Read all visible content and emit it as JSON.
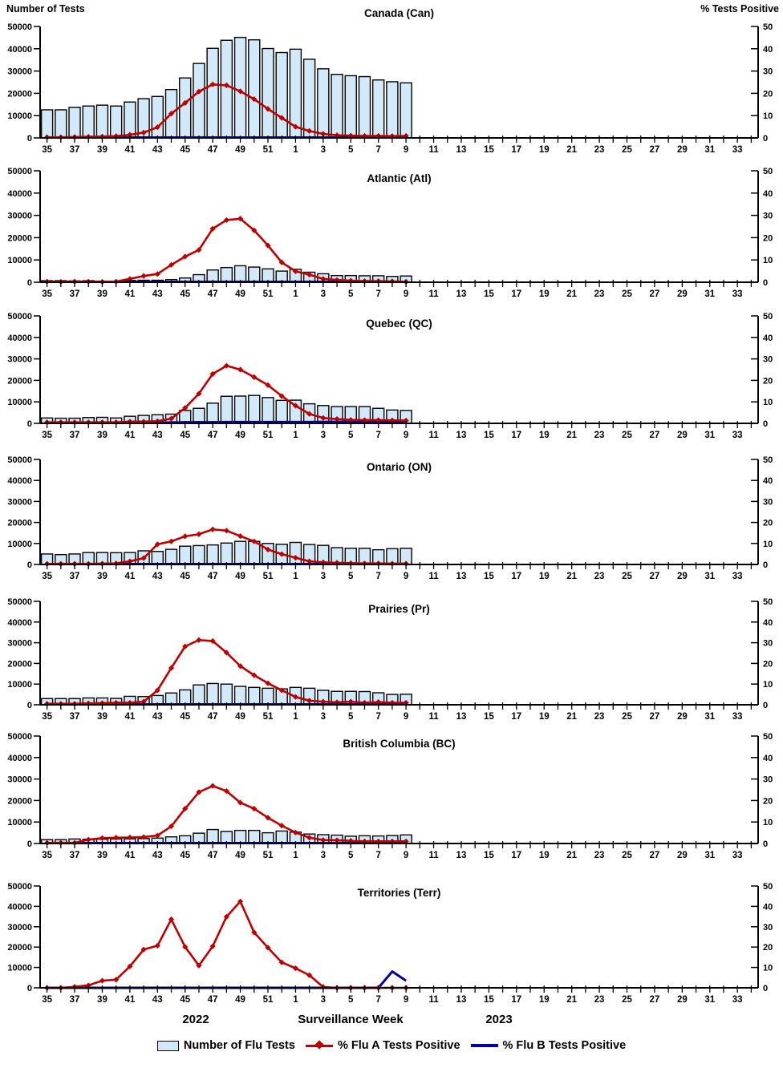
{
  "page": {
    "left_axis_header": "Number of Tests",
    "right_axis_header": "% Tests Positive",
    "footer": {
      "year_left": "2022",
      "x_axis_label": "Surveillance Week",
      "year_right": "2023"
    },
    "legend": [
      {
        "label": "Number of Flu Tests",
        "swatch": "bar"
      },
      {
        "label": "% Flu A Tests Positive",
        "swatch": "line-diamond"
      },
      {
        "label": "% Flu B Tests Positive",
        "swatch": "line"
      }
    ],
    "colors": {
      "bar_fill": "#D2E9F9",
      "bar_border": "#000000",
      "flu_a": "#C00000",
      "flu_b": "#0000A8",
      "axis": "#000000"
    }
  },
  "axes": {
    "left_ticks": [
      "0",
      "10000",
      "20000",
      "30000",
      "40000",
      "50000"
    ],
    "right_ticks": [
      "0",
      "10",
      "20",
      "30",
      "40",
      "50"
    ],
    "left_max": 50000,
    "right_max": 50,
    "week_slots": 52,
    "week_tick_labels": [
      "35",
      "37",
      "39",
      "41",
      "43",
      "45",
      "47",
      "49",
      "51",
      "1",
      "3",
      "5",
      "7",
      "9",
      "11",
      "13",
      "15",
      "17",
      "19",
      "21",
      "23",
      "25",
      "27",
      "29",
      "31",
      "33"
    ],
    "data_weeks": [
      "35",
      "36",
      "37",
      "38",
      "39",
      "40",
      "41",
      "42",
      "43",
      "44",
      "45",
      "46",
      "47",
      "48",
      "49",
      "50",
      "51",
      "52",
      "1",
      "2",
      "3",
      "4",
      "5",
      "6",
      "7",
      "8",
      "9"
    ]
  },
  "chart_data": [
    {
      "type": "combo-bar-line",
      "title": "Canada (Can)",
      "bars": [
        12600,
        12600,
        13700,
        14300,
        14700,
        14300,
        16100,
        17600,
        18600,
        21700,
        26900,
        33400,
        40200,
        43800,
        45100,
        44000,
        40100,
        38300,
        39800,
        35300,
        31000,
        28500,
        27900,
        27500,
        26000,
        25200,
        24700
      ],
      "flu_a_pct": [
        0.3,
        0.3,
        0.4,
        0.5,
        0.6,
        0.8,
        1.4,
        2.4,
        4.8,
        10.9,
        15.7,
        20.8,
        24,
        23.6,
        20.9,
        17.4,
        13,
        9,
        5,
        3.1,
        1.8,
        1.2,
        1,
        0.9,
        0.9,
        0.8,
        0.9
      ],
      "flu_b_pct": [
        0.2,
        0.2,
        0.2,
        0.2,
        0.2,
        0.2,
        0.2,
        0.2,
        0.2,
        0.2,
        0.2,
        0.2,
        0.2,
        0.2,
        0.2,
        0.2,
        0.2,
        0.2,
        0.2,
        0.2,
        0.2,
        0.2,
        0.2,
        0.2,
        0.2,
        0.2,
        0.2
      ]
    },
    {
      "type": "combo-bar-line",
      "title": "Atlantic (Atl)",
      "bars": [
        700,
        700,
        600,
        700,
        500,
        500,
        800,
        900,
        900,
        1200,
        1900,
        3400,
        5500,
        6600,
        7400,
        6800,
        6000,
        5000,
        5800,
        4500,
        3800,
        3000,
        3000,
        2900,
        2900,
        2600,
        2800
      ],
      "flu_a_pct": [
        0.3,
        0.2,
        0.3,
        0.3,
        0.2,
        0.3,
        1.5,
        2.8,
        3.7,
        7.8,
        11.5,
        14.5,
        24,
        27.9,
        28.5,
        23.3,
        16.5,
        8.9,
        4.9,
        3.4,
        1.5,
        1,
        0.7,
        0.5,
        0.5,
        0.4,
        0.2
      ],
      "flu_b_pct": [
        0.2,
        0.2,
        0.2,
        0.2,
        0.2,
        0.2,
        0.2,
        0.2,
        0.2,
        0.2,
        0.2,
        0.2,
        0.2,
        0.2,
        0.2,
        0.2,
        0.2,
        0.2,
        0.2,
        0.2,
        0.2,
        0.2,
        0.2,
        0.2,
        0.2,
        0.2,
        0.2
      ]
    },
    {
      "type": "combo-bar-line",
      "title": "Quebec (QC)",
      "bars": [
        2500,
        2400,
        2400,
        2700,
        2800,
        2500,
        3300,
        3700,
        4000,
        4300,
        6000,
        7000,
        9400,
        12600,
        12700,
        13000,
        12000,
        10700,
        10800,
        9100,
        8300,
        7800,
        7800,
        7800,
        7000,
        6200,
        6000
      ],
      "flu_a_pct": [
        0.5,
        0.5,
        0.5,
        0.5,
        0.5,
        0.5,
        0.8,
        0.8,
        1,
        2.2,
        7.2,
        13.8,
        23,
        26.8,
        25,
        21.5,
        17.8,
        12.7,
        8.2,
        4.4,
        2.5,
        2,
        1.6,
        1.5,
        1.5,
        1.4,
        1.3
      ],
      "flu_b_pct": [
        0.3,
        0.3,
        0.3,
        0.3,
        0.3,
        0.3,
        0.3,
        0.3,
        0.3,
        0.4,
        0.5,
        0.5,
        0.5,
        0.6,
        0.6,
        0.6,
        0.6,
        0.6,
        0.6,
        0.6,
        0.7,
        0.7,
        0.7,
        0.8,
        0.8,
        0.9,
        1
      ]
    },
    {
      "type": "combo-bar-line",
      "title": "Ontario (ON)",
      "bars": [
        5000,
        4700,
        5000,
        5700,
        5700,
        5600,
        5700,
        6500,
        6200,
        7200,
        8700,
        9000,
        9300,
        10200,
        11000,
        11000,
        10000,
        9600,
        10500,
        9500,
        9100,
        8000,
        7700,
        7700,
        7000,
        7500,
        7700
      ],
      "flu_a_pct": [
        0.3,
        0.3,
        0.3,
        0.3,
        0.4,
        0.5,
        1.5,
        3,
        9.6,
        11,
        13.4,
        14.4,
        16.7,
        16.1,
        13.5,
        11,
        7.1,
        4.9,
        3.2,
        1.5,
        1,
        0.8,
        0.6,
        0.5,
        0.5,
        0.4,
        0.4
      ],
      "flu_b_pct": [
        0.2,
        0.2,
        0.2,
        0.2,
        0.2,
        0.2,
        0.2,
        0.2,
        0.2,
        0.2,
        0.2,
        0.2,
        0.2,
        0.2,
        0.2,
        0.2,
        0.2,
        0.2,
        0.2,
        0.2,
        0.2,
        0.2,
        0.2,
        0.2,
        0.2,
        0.2,
        0.2
      ]
    },
    {
      "type": "combo-bar-line",
      "title": "Prairies (Pr)",
      "bars": [
        3000,
        3000,
        3000,
        3300,
        3300,
        3100,
        4100,
        4000,
        4500,
        5700,
        7200,
        9600,
        10300,
        10000,
        8900,
        8400,
        8000,
        7700,
        8400,
        8000,
        7000,
        6500,
        6500,
        6400,
        5800,
        5000,
        5100
      ],
      "flu_a_pct": [
        0.5,
        0.5,
        0.5,
        0.7,
        0.8,
        1,
        1,
        1.5,
        7,
        17.8,
        28.2,
        31.3,
        30.8,
        25.2,
        18.7,
        14.3,
        10.4,
        7,
        3.8,
        2,
        1.5,
        1.2,
        1.5,
        1,
        1.3,
        1,
        1
      ],
      "flu_b_pct": [
        0.2,
        0.2,
        0.2,
        0.2,
        0.2,
        0.2,
        0.2,
        0.2,
        0.2,
        0.2,
        0.2,
        0.2,
        0.2,
        0.2,
        0.2,
        0.2,
        0.2,
        0.2,
        0.2,
        0.2,
        0.2,
        0.2,
        0.2,
        0.2,
        0.2,
        0.2,
        0.2
      ]
    },
    {
      "type": "combo-bar-line",
      "title": "British Columbia (BC)",
      "bars": [
        1800,
        1800,
        2100,
        2000,
        2000,
        2100,
        2200,
        2300,
        2500,
        3100,
        3600,
        4800,
        6500,
        5600,
        6100,
        6100,
        5000,
        5800,
        5300,
        4400,
        4100,
        3900,
        3400,
        3600,
        3500,
        3700,
        4000
      ],
      "flu_a_pct": [
        0.3,
        0.3,
        0.3,
        1.8,
        2.5,
        2.7,
        2.8,
        3,
        3.7,
        8,
        16.2,
        23.9,
        26.8,
        24.4,
        19,
        16.2,
        12,
        8.3,
        5.1,
        2.7,
        1.6,
        1.5,
        1.2,
        1,
        1,
        1,
        1
      ],
      "flu_b_pct": [
        0.2,
        0.2,
        0.2,
        0.2,
        0.2,
        0.2,
        0.2,
        0.2,
        0.2,
        0.2,
        0.2,
        0.2,
        0.2,
        0.2,
        0.2,
        0.2,
        0.2,
        0.2,
        0.2,
        0.2,
        0.2,
        0.2,
        0.2,
        0.2,
        0.2,
        0.2,
        0.2
      ]
    },
    {
      "type": "combo-bar-line",
      "title": "Territories (Terr)",
      "bars": [
        0,
        0,
        0,
        0,
        0,
        0,
        0,
        0,
        0,
        0,
        0,
        0,
        0,
        0,
        0,
        0,
        0,
        0,
        0,
        0,
        0,
        0,
        0,
        0,
        0,
        0,
        0
      ],
      "flu_a_pct": [
        0,
        0,
        0.5,
        1.2,
        3.5,
        4,
        10.5,
        18.8,
        20.7,
        33.6,
        20.1,
        10.9,
        20.4,
        34.9,
        42.4,
        27.2,
        19.7,
        12.5,
        9.6,
        6.2,
        0.4,
        0,
        0,
        0,
        0,
        0,
        0
      ],
      "flu_b_pct": [
        0,
        0,
        0,
        0,
        0,
        0,
        0,
        0,
        0,
        0,
        0,
        0,
        0,
        0,
        0,
        0,
        0,
        0,
        0,
        0,
        0,
        0,
        0,
        0,
        0,
        8,
        3.5
      ]
    }
  ]
}
